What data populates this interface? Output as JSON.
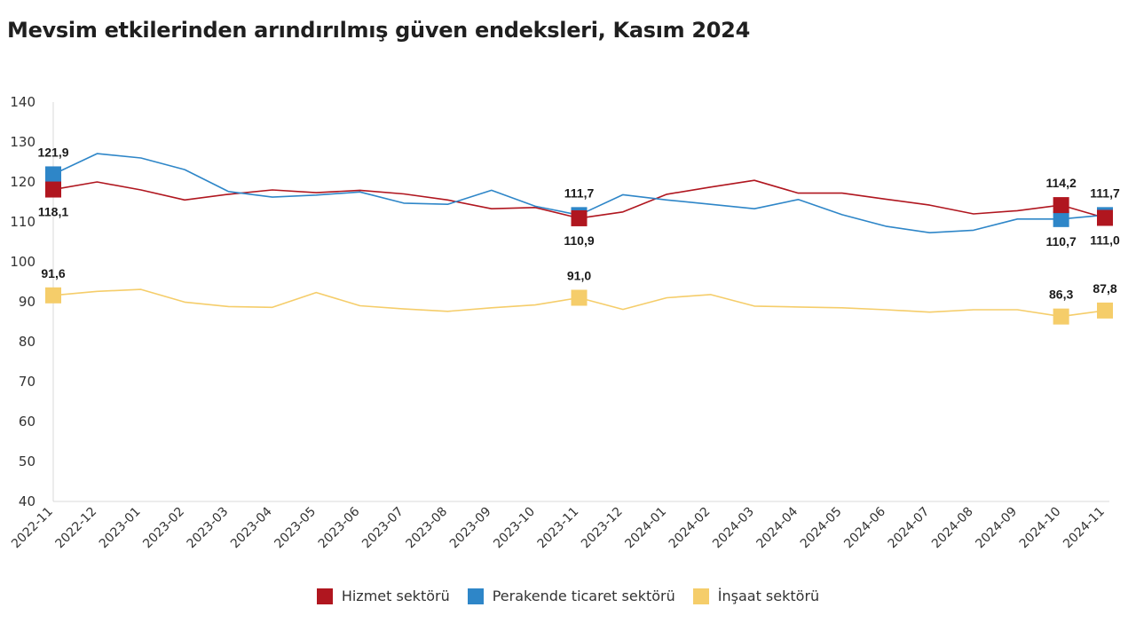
{
  "title": "Mevsim etkilerinden arındırılmış güven endeksleri, Kasım 2024",
  "chart_data": {
    "type": "line",
    "categories": [
      "2022-11",
      "2022-12",
      "2023-01",
      "2023-02",
      "2023-03",
      "2023-04",
      "2023-05",
      "2023-06",
      "2023-07",
      "2023-08",
      "2023-09",
      "2023-10",
      "2023-11",
      "2023-12",
      "2024-01",
      "2024-02",
      "2024-03",
      "2024-04",
      "2024-05",
      "2024-06",
      "2024-07",
      "2024-08",
      "2024-09",
      "2024-10",
      "2024-11"
    ],
    "ylim": [
      40,
      140
    ],
    "yticks": [
      40,
      50,
      60,
      70,
      80,
      90,
      100,
      110,
      120,
      130,
      140
    ],
    "grid": false,
    "legend_position": "bottom",
    "series": [
      {
        "name": "Hizmet sektörü",
        "color": "#b0161f",
        "values": [
          118.1,
          120.0,
          118.0,
          115.5,
          116.9,
          118.0,
          117.3,
          117.9,
          117.0,
          115.5,
          113.3,
          113.6,
          110.9,
          112.5,
          116.9,
          118.7,
          120.4,
          117.2,
          117.2,
          115.7,
          114.2,
          112.0,
          112.8,
          114.2,
          111.0
        ],
        "labels": [
          {
            "index": 0,
            "text": "118,1",
            "pos": "below"
          },
          {
            "index": 12,
            "text": "110,9",
            "pos": "below"
          },
          {
            "index": 23,
            "text": "114,2",
            "pos": "above"
          },
          {
            "index": 24,
            "text": "111,0",
            "pos": "below"
          }
        ]
      },
      {
        "name": "Perakende ticaret sektörü",
        "color": "#2e86c8",
        "values": [
          121.9,
          127.1,
          126.0,
          123.1,
          117.6,
          116.2,
          116.7,
          117.5,
          114.7,
          114.4,
          117.9,
          113.9,
          111.7,
          116.8,
          115.5,
          114.4,
          113.3,
          115.6,
          111.8,
          108.9,
          107.3,
          107.9,
          110.7,
          110.7,
          111.7
        ],
        "labels": [
          {
            "index": 0,
            "text": "121,9",
            "pos": "above"
          },
          {
            "index": 12,
            "text": "111,7",
            "pos": "above"
          },
          {
            "index": 23,
            "text": "110,7",
            "pos": "below"
          },
          {
            "index": 24,
            "text": "111,7",
            "pos": "above"
          }
        ]
      },
      {
        "name": "İnşaat sektörü",
        "color": "#f5cd6a",
        "values": [
          91.6,
          92.6,
          93.1,
          89.9,
          88.8,
          88.6,
          92.3,
          89.0,
          88.2,
          87.6,
          88.5,
          89.2,
          91.0,
          88.1,
          91.0,
          91.8,
          88.9,
          88.7,
          88.5,
          88.0,
          87.4,
          88.0,
          88.0,
          86.3,
          87.8
        ],
        "labels": [
          {
            "index": 0,
            "text": "91,6",
            "pos": "above"
          },
          {
            "index": 12,
            "text": "91,0",
            "pos": "above"
          },
          {
            "index": 23,
            "text": "86,3",
            "pos": "above"
          },
          {
            "index": 24,
            "text": "87,8",
            "pos": "above"
          }
        ]
      }
    ]
  }
}
